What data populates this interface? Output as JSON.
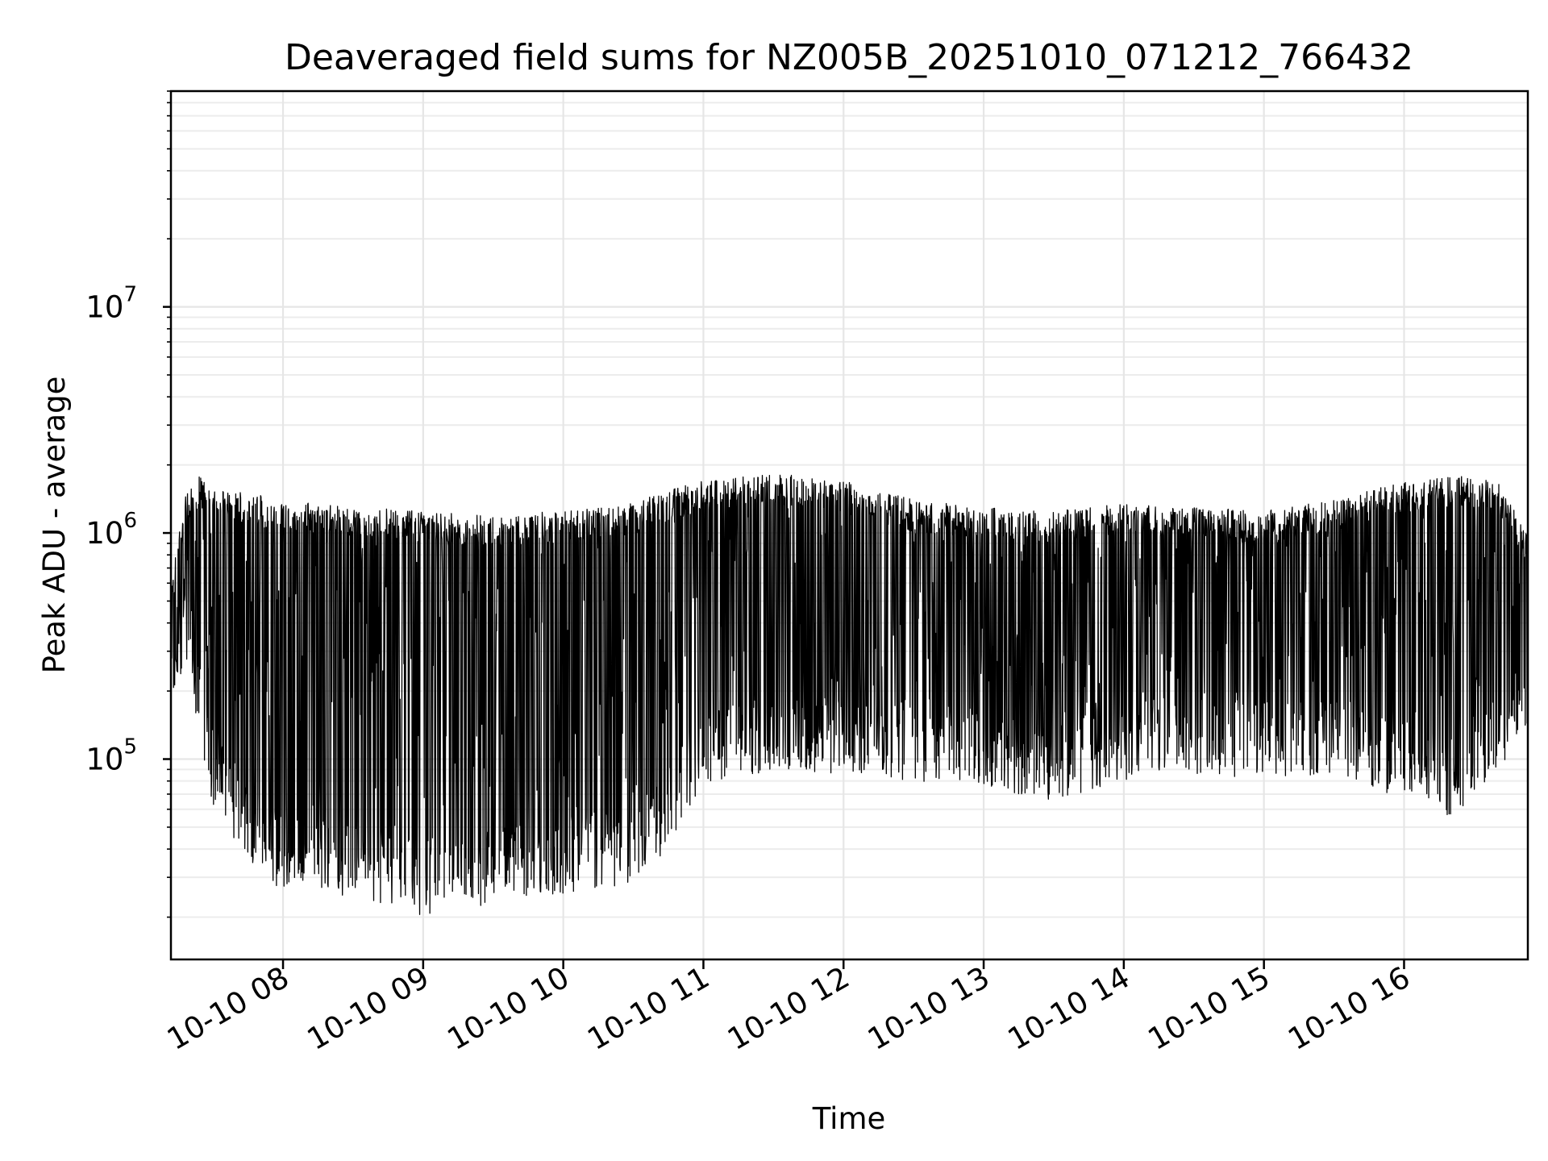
{
  "chart_data": {
    "type": "line",
    "title": "Deaveraged field sums for NZ005B_20251010_071212_766432",
    "xlabel": "Time",
    "ylabel": "Peak ADU - average",
    "yscale": "log",
    "grid": true,
    "grid_minor": true,
    "xlim": [
      "2025-10-10 07:12",
      "2025-10-10 16:53"
    ],
    "ylim": [
      13000,
      90000000
    ],
    "x_tick_labels": [
      {
        "value": "2025-10-10 08:00",
        "label": "10-10 08"
      },
      {
        "value": "2025-10-10 09:00",
        "label": "10-10 09"
      },
      {
        "value": "2025-10-10 10:00",
        "label": "10-10 10"
      },
      {
        "value": "2025-10-10 11:00",
        "label": "10-10 11"
      },
      {
        "value": "2025-10-10 12:00",
        "label": "10-10 12"
      },
      {
        "value": "2025-10-10 13:00",
        "label": "10-10 13"
      },
      {
        "value": "2025-10-10 14:00",
        "label": "10-10 14"
      },
      {
        "value": "2025-10-10 15:00",
        "label": "10-10 15"
      },
      {
        "value": "2025-10-10 16:00",
        "label": "10-10 16"
      }
    ],
    "y_ticks": [
      {
        "value": 100000,
        "base": "10",
        "exp": "5"
      },
      {
        "value": 1000000,
        "base": "10",
        "exp": "6"
      },
      {
        "value": 10000000,
        "base": "10",
        "exp": "7"
      }
    ],
    "series": [
      {
        "color": "#000000",
        "style": "dense oscillating line",
        "envelope": [
          {
            "x": "2025-10-10 07:12",
            "low": 190000,
            "high": 600000
          },
          {
            "x": "2025-10-10 07:18",
            "low": 250000,
            "high": 1500000
          },
          {
            "x": "2025-10-10 07:24",
            "low": 130000,
            "high": 1800000
          },
          {
            "x": "2025-10-10 07:30",
            "low": 60000,
            "high": 1600000
          },
          {
            "x": "2025-10-10 07:45",
            "low": 35000,
            "high": 1500000
          },
          {
            "x": "2025-10-10 08:00",
            "low": 25000,
            "high": 1400000
          },
          {
            "x": "2025-10-10 08:30",
            "low": 25000,
            "high": 1300000
          },
          {
            "x": "2025-10-10 09:00",
            "low": 20000,
            "high": 1250000
          },
          {
            "x": "2025-10-10 09:30",
            "low": 22000,
            "high": 1200000
          },
          {
            "x": "2025-10-10 10:00",
            "low": 25000,
            "high": 1250000
          },
          {
            "x": "2025-10-10 10:30",
            "low": 28000,
            "high": 1350000
          },
          {
            "x": "2025-10-10 10:45",
            "low": 40000,
            "high": 1550000
          },
          {
            "x": "2025-10-10 11:00",
            "low": 75000,
            "high": 1700000
          },
          {
            "x": "2025-10-10 11:30",
            "low": 90000,
            "high": 1850000
          },
          {
            "x": "2025-10-10 12:00",
            "low": 85000,
            "high": 1700000
          },
          {
            "x": "2025-10-10 12:30",
            "low": 80000,
            "high": 1400000
          },
          {
            "x": "2025-10-10 13:00",
            "low": 75000,
            "high": 1300000
          },
          {
            "x": "2025-10-10 13:30",
            "low": 65000,
            "high": 1250000
          },
          {
            "x": "2025-10-10 14:00",
            "low": 80000,
            "high": 1350000
          },
          {
            "x": "2025-10-10 14:30",
            "low": 85000,
            "high": 1300000
          },
          {
            "x": "2025-10-10 15:00",
            "low": 80000,
            "high": 1250000
          },
          {
            "x": "2025-10-10 15:30",
            "low": 85000,
            "high": 1400000
          },
          {
            "x": "2025-10-10 16:00",
            "low": 65000,
            "high": 1700000
          },
          {
            "x": "2025-10-10 16:20",
            "low": 55000,
            "high": 1800000
          },
          {
            "x": "2025-10-10 16:40",
            "low": 85000,
            "high": 1700000
          },
          {
            "x": "2025-10-10 16:53",
            "low": 130000,
            "high": 1000000
          }
        ]
      }
    ]
  }
}
